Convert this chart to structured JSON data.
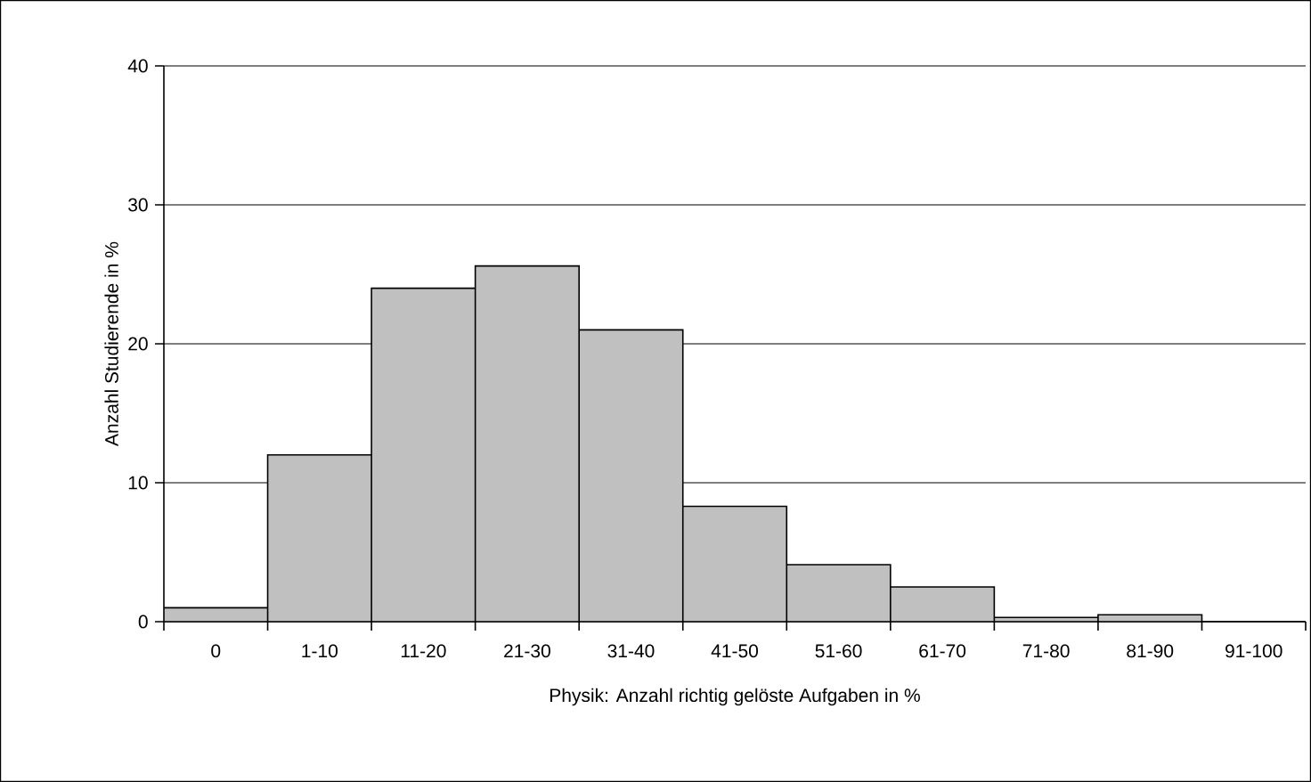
{
  "chart_data": {
    "type": "bar",
    "xlabel": "Physik: Anzahl richtig gelöste Aufgaben  in %",
    "ylabel": "Anzahl Studierende in %",
    "categories": [
      "0",
      "1-10",
      "11-20",
      "21-30",
      "31-40",
      "41-50",
      "51-60",
      "61-70",
      "71-80",
      "81-90",
      "91-100"
    ],
    "values": [
      1.0,
      12.0,
      24.0,
      25.6,
      21.0,
      8.3,
      4.1,
      2.5,
      0.3,
      0.5,
      0
    ],
    "color": "#c0c0c0",
    "ylim": [
      0,
      40
    ],
    "yticks": [
      0,
      10,
      20,
      30,
      40
    ],
    "grid": "y"
  }
}
